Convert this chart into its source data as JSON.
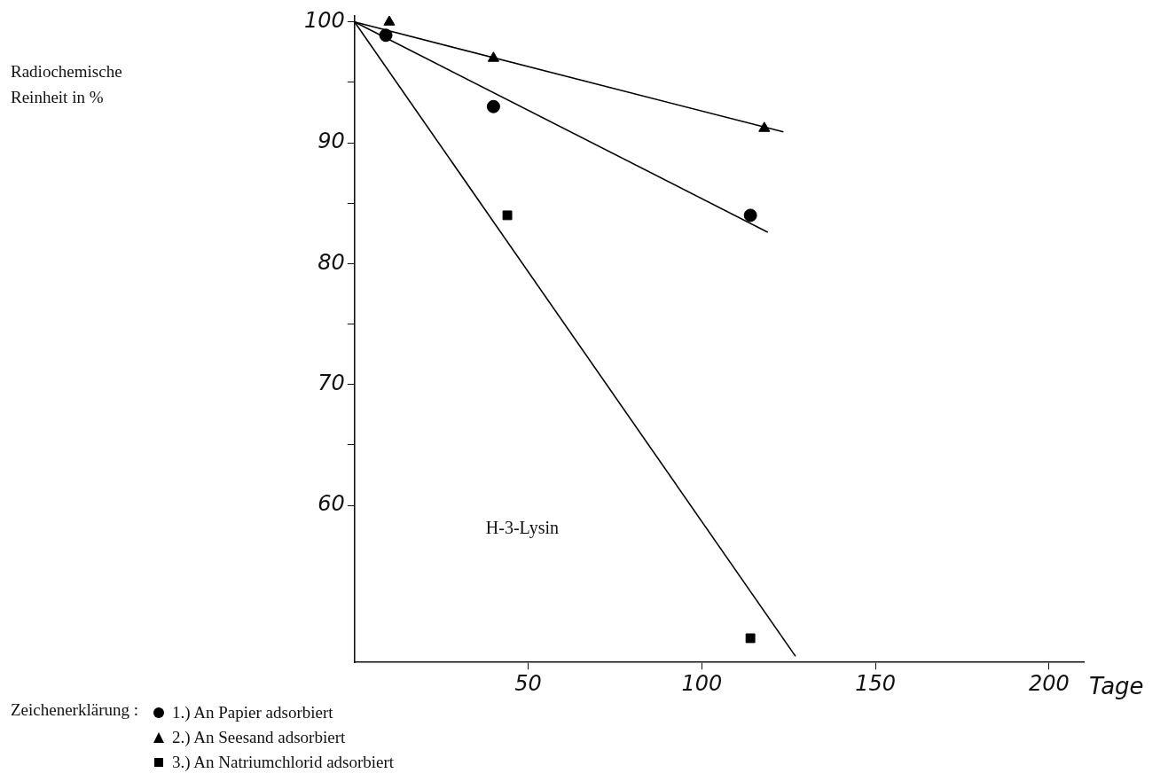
{
  "chart_data": {
    "type": "scatter",
    "xlabel": "Tage",
    "annotations": [
      "Radiochemische Reinheit in %",
      "H-3-Lysin"
    ],
    "legend": "bottom",
    "legend_title": "Zeichenerklärung :",
    "grid": false,
    "xlim": [
      0,
      210
    ],
    "xticks": [
      50,
      100,
      150,
      200
    ],
    "ylim": [
      47,
      100.5
    ],
    "yticks": [
      {
        "value": 65,
        "label": null
      },
      {
        "value": 75,
        "label": null
      },
      {
        "value": 85,
        "label": null
      },
      {
        "value": 95,
        "label": null
      },
      60,
      70,
      80,
      90,
      100
    ],
    "series": [
      {
        "name": "1.) An Papier adsorbiert",
        "marker": "circle",
        "color": "#000000",
        "x": [
          9,
          40,
          114
        ],
        "values": [
          98.9,
          93,
          84
        ]
      },
      {
        "name": "2.) An Seesand adsorbiert",
        "marker": "triangle",
        "color": "#000000",
        "x": [
          10,
          40,
          118
        ],
        "values": [
          100,
          97,
          91.2
        ]
      },
      {
        "name": "3.) An Natriumchlorid adsorbiert",
        "marker": "square",
        "color": "#000000",
        "x": [
          44,
          114
        ],
        "values": [
          84,
          49
        ]
      },
      {
        "type": "line",
        "marker": "none",
        "color": "#000000",
        "x": [
          0,
          119
        ],
        "values": [
          100,
          82.6
        ]
      },
      {
        "type": "line",
        "marker": "none",
        "color": "#000000",
        "x": [
          0,
          123.5
        ],
        "values": [
          100,
          90.9
        ]
      },
      {
        "type": "line",
        "marker": "none",
        "color": "#000000",
        "x": [
          0,
          127
        ],
        "values": [
          100,
          47.5
        ]
      }
    ]
  }
}
